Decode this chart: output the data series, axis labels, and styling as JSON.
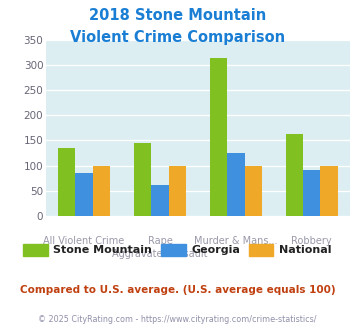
{
  "title_line1": "2018 Stone Mountain",
  "title_line2": "Violent Crime Comparison",
  "title_color": "#1a7fd4",
  "stone_mountain": [
    135,
    145,
    313,
    162
  ],
  "georgia": [
    85,
    62,
    125,
    92
  ],
  "national": [
    100,
    100,
    100,
    100
  ],
  "colors": {
    "stone_mountain": "#80c020",
    "georgia": "#4090e0",
    "national": "#f0a828"
  },
  "ylim": [
    0,
    350
  ],
  "yticks": [
    0,
    50,
    100,
    150,
    200,
    250,
    300,
    350
  ],
  "bg_color": "#ddeef2",
  "cat_labels_top": [
    "",
    "Rape",
    "Murder & Mans...",
    ""
  ],
  "cat_labels_bot": [
    "All Violent Crime",
    "Aggravated Assault",
    "",
    "Robbery"
  ],
  "legend_labels": [
    "Stone Mountain",
    "Georgia",
    "National"
  ],
  "note": "Compared to U.S. average. (U.S. average equals 100)",
  "note_color": "#c04010",
  "footer": "© 2025 CityRating.com - https://www.cityrating.com/crime-statistics/",
  "footer_color": "#9090aa"
}
